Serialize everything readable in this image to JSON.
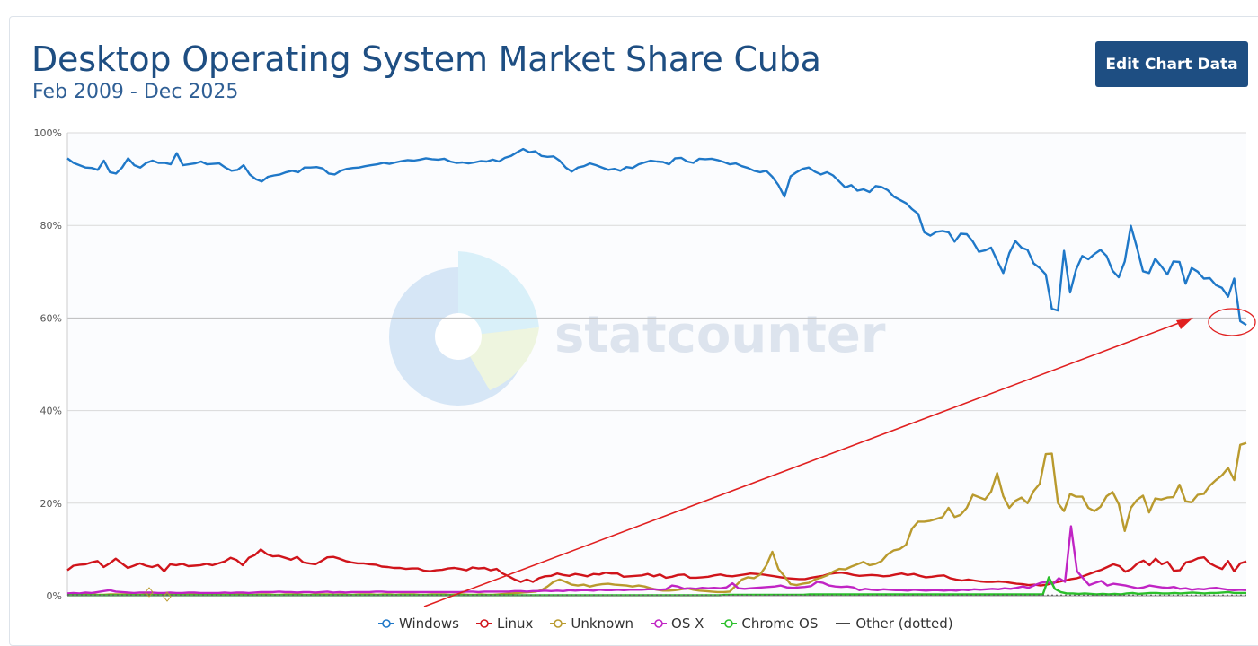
{
  "header": {
    "title": "Desktop Operating System Market Share Cuba",
    "subtitle": "Feb 2009 - Dec 2025",
    "edit_button": "Edit Chart Data"
  },
  "watermark": "statcounter",
  "chart_data": {
    "type": "line",
    "title": "Desktop Operating System Market Share Cuba",
    "subtitle": "Feb 2009 - Dec 2025",
    "x_range": [
      "Feb 2009",
      "Dec 2025"
    ],
    "ylim": [
      0,
      100
    ],
    "y_ticks": [
      "0%",
      "20%",
      "40%",
      "60%",
      "80%",
      "100%"
    ],
    "grid": true,
    "legend_position": "bottom",
    "series": [
      {
        "name": "Windows",
        "color": "#1f78c8",
        "values": [
          94.5,
          93.5,
          93,
          92.5,
          92.4,
          92,
          94,
          91.5,
          91.2,
          92.5,
          94.5,
          93,
          92.5,
          93.5,
          94,
          93.5,
          93.5,
          93.2,
          95.6,
          93,
          93.2,
          93.4,
          93.8,
          93.2,
          93.3,
          93.4,
          92.5,
          91.8,
          92,
          93,
          91,
          90,
          89.5,
          90.5,
          90.8,
          91,
          91.5,
          91.8,
          91.5,
          92.5,
          92.5,
          92.6,
          92.3,
          91.2,
          91,
          91.8,
          92.2,
          92.4,
          92.5,
          92.8,
          93,
          93.2,
          93.5,
          93.3,
          93.6,
          93.9,
          94.1,
          94,
          94.2,
          94.5,
          94.3,
          94.2,
          94.4,
          93.8,
          93.5,
          93.6,
          93.4,
          93.6,
          93.9,
          93.8,
          94.2,
          93.8,
          94.6,
          95,
          95.8,
          96.5,
          95.8,
          96,
          95,
          94.8,
          94.9,
          94,
          92.5,
          91.6,
          92.5,
          92.8,
          93.4,
          93,
          92.5,
          92,
          92.2,
          91.8,
          92.6,
          92.4,
          93.2,
          93.6,
          94,
          93.8,
          93.7,
          93.2,
          94.5,
          94.6,
          93.8,
          93.5,
          94.4,
          94.3,
          94.4,
          94.1,
          93.7,
          93.2,
          93.4,
          92.8,
          92.4,
          91.8,
          91.5,
          91.8,
          90.5,
          88.7,
          86.2,
          90.6,
          91.5,
          92.2,
          92.5,
          91.6,
          91,
          91.5,
          90.8,
          89.5,
          88.2,
          88.7,
          87.5,
          87.8,
          87.2,
          88.5,
          88.3,
          87.6,
          86.2,
          85.5,
          84.8,
          83.5,
          82.5,
          78.5,
          77.8,
          78.6,
          78.8,
          78.5,
          76.5,
          78.2,
          78.1,
          76.5,
          74.3,
          74.6,
          75.2,
          72.4,
          69.7,
          74,
          76.6,
          75.2,
          74.7,
          71.8,
          70.8,
          69.4,
          62,
          61.6,
          74.5,
          65.5,
          70.5,
          73.4,
          72.7,
          73.8,
          74.7,
          73.4,
          70.2,
          68.8,
          72.2,
          79.9,
          75.2,
          70.1,
          69.7,
          72.8,
          71.2,
          69.4,
          72.2,
          72.1,
          67.4,
          70.8,
          70,
          68.5,
          68.6,
          67.1,
          66.5,
          64.6,
          68.5,
          59.3,
          58.5
        ]
      },
      {
        "name": "Linux",
        "color": "#d0141b",
        "values": [
          5.5,
          6.5,
          6.7,
          6.8,
          7.2,
          7.5,
          6.2,
          7,
          8,
          7,
          6,
          6.5,
          7,
          6.5,
          6.2,
          6.6,
          5.3,
          6.8,
          6.6,
          6.9,
          6.4,
          6.5,
          6.6,
          6.9,
          6.6,
          7,
          7.4,
          8.2,
          7.7,
          6.6,
          8.2,
          8.8,
          10,
          9,
          8.5,
          8.6,
          8.2,
          7.8,
          8.4,
          7.2,
          7,
          6.8,
          7.5,
          8.3,
          8.4,
          8,
          7.5,
          7.2,
          7,
          7,
          6.8,
          6.7,
          6.3,
          6.2,
          6,
          6,
          5.8,
          5.9,
          5.9,
          5.4,
          5.3,
          5.5,
          5.6,
          5.9,
          6,
          5.8,
          5.5,
          6.1,
          5.9,
          6,
          5.5,
          5.8,
          4.8,
          4.2,
          3.5,
          3,
          3.5,
          3,
          3.8,
          4.2,
          4.3,
          4.8,
          4.5,
          4.3,
          4.7,
          4.5,
          4.2,
          4.7,
          4.6,
          5,
          4.8,
          4.8,
          4.1,
          4.2,
          4.3,
          4.4,
          4.7,
          4.2,
          4.6,
          3.9,
          4.1,
          4.5,
          4.6,
          3.9,
          3.9,
          4,
          4.1,
          4.4,
          4.6,
          4.3,
          4.2,
          4.4,
          4.6,
          4.8,
          4.7,
          4.6,
          4.4,
          4.2,
          4,
          3.8,
          3.7,
          3.6,
          3.6,
          3.9,
          4.1,
          4.3,
          4.7,
          4.9,
          5,
          4.8,
          4.5,
          4.3,
          4.4,
          4.5,
          4.4,
          4.2,
          4.3,
          4.6,
          4.8,
          4.5,
          4.7,
          4.3,
          4,
          4.1,
          4.3,
          4.4,
          3.8,
          3.5,
          3.3,
          3.5,
          3.3,
          3.1,
          3,
          3,
          3.1,
          3,
          2.8,
          2.6,
          2.5,
          2.3,
          2.4,
          2.2,
          2.4,
          2.8,
          3,
          3.3,
          3.6,
          3.8,
          4.2,
          4.7,
          5.2,
          5.6,
          6.2,
          6.8,
          6.4,
          5.2,
          5.8,
          7,
          7.6,
          6.6,
          8,
          6.8,
          7.3,
          5.4,
          5.5,
          7.2,
          7.5,
          8.1,
          8.3,
          7,
          6.3,
          5.8,
          7.5,
          5.3,
          7,
          7.4
        ]
      },
      {
        "name": "Unknown",
        "color": "#b99a2e",
        "values": [
          0.3,
          0.3,
          0.2,
          0.3,
          0.3,
          0.2,
          0.2,
          0.3,
          0.3,
          0.3,
          0.3,
          0.2,
          0.2,
          0.3,
          0.2,
          0.2,
          0.2,
          0.3,
          0.2,
          0.3,
          0.3,
          0.3,
          0.2,
          0.2,
          0.3,
          0.3,
          0.2,
          0.3,
          0.3,
          0.3,
          0.2,
          0.2,
          0.3,
          0.3,
          0.2,
          0.2,
          0.3,
          0.3,
          0.3,
          0.2,
          0.2,
          0.3,
          0.3,
          0.3,
          0.2,
          0.3,
          0.2,
          0.2,
          0.3,
          0.3,
          0.3,
          0.2,
          0.3,
          0.3,
          0.2,
          0.3,
          0.3,
          0.3,
          0.2,
          0.2,
          0.3,
          0.3,
          0.3,
          0.2,
          0.3,
          0.3,
          0.2,
          0.2,
          0.3,
          0.2,
          0.2,
          0.3,
          0.4,
          0.5,
          0.6,
          0.7,
          0.8,
          0.9,
          1.2,
          2,
          3,
          3.5,
          3,
          2.4,
          2.2,
          2.4,
          2,
          2.3,
          2.5,
          2.6,
          2.4,
          2.3,
          2.2,
          2,
          2.2,
          2,
          1.6,
          1.3,
          1.1,
          1.1,
          1.2,
          1.4,
          1.6,
          1.3,
          1.1,
          1,
          0.9,
          0.8,
          0.8,
          0.9,
          2.2,
          3.5,
          4,
          3.8,
          4.6,
          6.5,
          9.5,
          5.8,
          4.2,
          2.5,
          2.3,
          2.6,
          2.8,
          3.5,
          3.9,
          4.4,
          5.2,
          5.8,
          5.7,
          6.3,
          6.8,
          7.3,
          6.6,
          6.9,
          7.5,
          9,
          9.8,
          10.1,
          11,
          14.5,
          16,
          16,
          16.2,
          16.6,
          17,
          19,
          17,
          17.5,
          19,
          21.8,
          21.3,
          20.8,
          22.5,
          26.5,
          21.5,
          19,
          20.5,
          21.2,
          20,
          22.6,
          24.2,
          30.6,
          30.7,
          20,
          18.3,
          22,
          21.4,
          21.4,
          19,
          18.3,
          19.2,
          21.5,
          22.4,
          19.8,
          14,
          19,
          20.7,
          21.6,
          18,
          21,
          20.8,
          21.2,
          21.3,
          24,
          20.4,
          20.2,
          21.8,
          22,
          23.8,
          25,
          26,
          27.6,
          25,
          32.6,
          33
        ]
      },
      {
        "name": "OS X",
        "color": "#c024c4",
        "values": [
          0.5,
          0.6,
          0.5,
          0.7,
          0.6,
          0.8,
          1,
          1.2,
          0.9,
          0.8,
          0.7,
          0.6,
          0.7,
          0.7,
          0.7,
          0.6,
          0.6,
          0.7,
          0.6,
          0.6,
          0.7,
          0.7,
          0.6,
          0.6,
          0.6,
          0.6,
          0.7,
          0.6,
          0.7,
          0.7,
          0.6,
          0.7,
          0.8,
          0.8,
          0.8,
          0.9,
          0.8,
          0.8,
          0.7,
          0.8,
          0.8,
          0.7,
          0.8,
          0.9,
          0.7,
          0.8,
          0.7,
          0.8,
          0.8,
          0.8,
          0.8,
          0.9,
          0.9,
          0.8,
          0.8,
          0.8,
          0.8,
          0.8,
          0.8,
          0.8,
          0.8,
          0.8,
          0.8,
          0.8,
          0.8,
          0.8,
          0.9,
          0.9,
          0.8,
          0.9,
          0.9,
          0.9,
          0.9,
          0.9,
          1,
          1,
          0.9,
          1,
          1,
          1.1,
          1,
          1.1,
          1,
          1.2,
          1.1,
          1.2,
          1.2,
          1.1,
          1.3,
          1.2,
          1.2,
          1.3,
          1.2,
          1.3,
          1.3,
          1.3,
          1.4,
          1.4,
          1.3,
          1.4,
          2.2,
          2,
          1.5,
          1.6,
          1.5,
          1.7,
          1.6,
          1.7,
          1.6,
          1.8,
          2.7,
          1.6,
          1.5,
          1.6,
          1.7,
          1.8,
          1.9,
          2,
          2.2,
          1.8,
          1.7,
          1.8,
          1.9,
          2.1,
          3,
          2.8,
          2.2,
          2,
          1.9,
          2,
          1.8,
          1.2,
          1.5,
          1.3,
          1.2,
          1.4,
          1.3,
          1.2,
          1.2,
          1.1,
          1.3,
          1.2,
          1.1,
          1.2,
          1.2,
          1.1,
          1.2,
          1.1,
          1.3,
          1.2,
          1.4,
          1.3,
          1.4,
          1.5,
          1.4,
          1.6,
          1.5,
          1.7,
          2,
          1.7,
          2.3,
          2.8,
          3,
          2.5,
          3.8,
          3,
          15,
          5.3,
          3.8,
          2.3,
          2.8,
          3.2,
          2.2,
          2.6,
          2.4,
          2.2,
          1.9,
          1.6,
          1.8,
          2.2,
          2,
          1.8,
          1.7,
          1.9,
          1.5,
          1.6,
          1.3,
          1.5,
          1.4,
          1.6,
          1.7,
          1.5,
          1.3,
          1.2,
          1.3,
          1.2
        ]
      },
      {
        "name": "Chrome OS",
        "color": "#2bbf2b",
        "values": [
          0.1,
          0.1,
          0.1,
          0.1,
          0.1,
          0.1,
          0.1,
          0.1,
          0.1,
          0.1,
          0.1,
          0.1,
          0.1,
          0.1,
          0.1,
          0.1,
          0.1,
          0.1,
          0.1,
          0.1,
          0.1,
          0.1,
          0.1,
          0.1,
          0.1,
          0.1,
          0.1,
          0.1,
          0.1,
          0.1,
          0.1,
          0.1,
          0.1,
          0.1,
          0.1,
          0.1,
          0.1,
          0.1,
          0.1,
          0.1,
          0.1,
          0.1,
          0.1,
          0.1,
          0.1,
          0.1,
          0.1,
          0.1,
          0.1,
          0.1,
          0.1,
          0.1,
          0.1,
          0.1,
          0.1,
          0.1,
          0.1,
          0.1,
          0.1,
          0.1,
          0.1,
          0.1,
          0.1,
          0.1,
          0.1,
          0.1,
          0.1,
          0.1,
          0.1,
          0.1,
          0.1,
          0.1,
          0.1,
          0.1,
          0.1,
          0.1,
          0.1,
          0.1,
          0.1,
          0.1,
          0.1,
          0.1,
          0.1,
          0.1,
          0.1,
          0.1,
          0.1,
          0.1,
          0.1,
          0.1,
          0.1,
          0.1,
          0.1,
          0.1,
          0.1,
          0.1,
          0.1,
          0.1,
          0.1,
          0.1,
          0.1,
          0.1,
          0.1,
          0.1,
          0.1,
          0.1,
          0.1,
          0.1,
          0.1,
          0.1,
          0.2,
          0.2,
          0.2,
          0.2,
          0.2,
          0.2,
          0.2,
          0.2,
          0.2,
          0.2,
          0.2,
          0.2,
          0.2,
          0.2,
          0.3,
          0.3,
          0.3,
          0.3,
          0.3,
          0.3,
          0.3,
          0.3,
          0.3,
          0.3,
          0.3,
          0.3,
          0.3,
          0.3,
          0.3,
          0.3,
          0.3,
          0.3,
          0.3,
          0.3,
          0.3,
          0.3,
          0.3,
          0.3,
          0.3,
          0.3,
          0.3,
          0.3,
          0.3,
          0.3,
          0.3,
          0.3,
          0.3,
          0.3,
          0.3,
          0.3,
          0.3,
          0.3,
          0.3,
          0.3,
          4,
          1.5,
          0.8,
          0.5,
          0.5,
          0.4,
          0.5,
          0.4,
          0.3,
          0.4,
          0.3,
          0.4,
          0.3,
          0.5,
          0.6,
          0.4,
          0.5,
          0.6,
          0.6,
          0.5,
          0.5,
          0.6,
          0.5,
          0.6,
          0.7,
          0.6,
          0.5,
          0.6,
          0.6,
          0.7,
          0.8,
          0.6,
          0.6,
          0.6
        ]
      },
      {
        "name": "Other (dotted)",
        "color": "#444444",
        "dotted": true,
        "values": [
          0.1,
          0.1,
          0.1,
          0.1,
          0.1,
          0.1,
          0.1,
          0.1,
          0.1,
          0.1,
          0.1,
          0.1,
          0.1,
          0.1,
          0.1,
          0.1,
          0.1,
          0.1,
          0.1,
          0.1,
          0.1,
          0.1,
          0.1,
          0.1,
          0.1,
          0.1,
          0.1,
          0.1,
          0.1,
          0.1,
          0.1,
          0.1,
          0.1,
          0.1,
          0.1,
          0.1,
          0.1,
          0.1,
          0.1,
          0.1,
          0.1,
          0.1,
          0.1,
          0.1,
          0.1,
          0.1,
          0.1,
          0.1,
          0.1,
          0.1,
          0.1,
          0.1,
          0.1,
          0.1,
          0.1,
          0.1,
          0.1,
          0.1,
          0.1,
          0.1,
          0.1,
          0.1,
          0.1,
          0.1,
          0.1,
          0.1,
          0.1,
          0.1,
          0.1,
          0.1,
          0.1,
          0.1,
          0.1,
          0.1,
          0.1,
          0.1,
          0.1,
          0.1,
          0.1,
          0.1,
          0.1,
          0.1,
          0.1,
          0.1,
          0.1,
          0.1,
          0.1,
          0.1,
          0.1,
          0.1,
          0.1,
          0.1,
          0.1,
          0.1,
          0.1,
          0.1,
          0.1,
          0.1,
          0.1,
          0.1,
          0.1,
          0.1,
          0.1,
          0.1,
          0.1,
          0.1,
          0.1,
          0.1,
          0.1,
          0.1,
          0.1,
          0.1,
          0.1,
          0.1,
          0.1,
          0.1,
          0.1,
          0.1,
          0.1,
          0.1,
          0.1,
          0.1,
          0.1,
          0.1,
          0.1,
          0.1,
          0.1,
          0.1,
          0.1,
          0.1,
          0.1,
          0.1,
          0.1,
          0.1,
          0.1,
          0.1,
          0.1,
          0.1,
          0.1,
          0.1,
          0.1,
          0.1,
          0.1,
          0.1,
          0.1,
          0.1,
          0.1,
          0.1,
          0.1,
          0.1,
          0.1,
          0.1,
          0.1,
          0.1,
          0.1,
          0.1,
          0.1,
          0.1,
          0.1,
          0.1,
          0.1,
          0.1,
          0.1,
          0.1,
          0.1,
          0.1,
          0.1,
          0.1,
          0.1,
          0.1,
          0.1,
          0.1,
          0.1,
          0.1,
          0.1,
          0.1,
          0.1,
          0.1,
          0.1,
          0.1,
          0.1,
          0.1,
          0.1,
          0.1,
          0.1,
          0.1,
          0.1,
          0.1,
          0.1,
          0.1,
          0.1,
          0.1,
          0.1,
          0.1,
          0.1,
          0.1,
          0.1,
          0.1,
          0.1,
          0.1,
          0.1,
          0.1,
          0.1,
          0.1
        ]
      }
    ]
  },
  "annotations": {
    "arrow_color": "#e02020",
    "circle_color": "#e02020"
  }
}
